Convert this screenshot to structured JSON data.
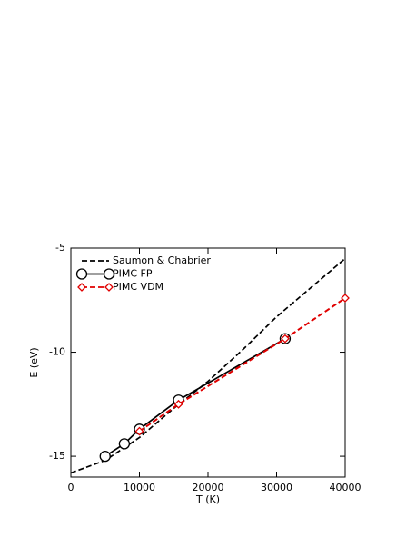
{
  "chart_data": {
    "type": "line",
    "xlabel": "T (K)",
    "ylabel": "E (eV)",
    "xlim": [
      0,
      40000
    ],
    "xticks": [
      0,
      10000,
      20000,
      30000,
      40000
    ],
    "ylim": [
      -16,
      -5
    ],
    "yticks": [
      -15,
      -10,
      -5
    ],
    "legend": "upper left",
    "series": [
      {
        "name": "Saumon & Chabrier",
        "color": "#000000",
        "dash": true,
        "marker": "none",
        "x": [
          0,
          5000,
          10000,
          15000,
          20000,
          25000,
          30000,
          35000,
          40000
        ],
        "values": [
          -15.8,
          -15.2,
          -14.1,
          -12.7,
          -11.4,
          -9.9,
          -8.3,
          -6.9,
          -5.5
        ]
      },
      {
        "name": "PIMC FP",
        "color": "#000000",
        "dash": false,
        "marker": "circle",
        "x": [
          5000,
          7800,
          10000,
          15700,
          31250
        ],
        "values": [
          -15.0,
          -14.4,
          -13.7,
          -12.3,
          -9.35
        ]
      },
      {
        "name": "PIMC VDM",
        "color": "#e00000",
        "dash": true,
        "marker": "diamond",
        "x": [
          10000,
          15700,
          31250,
          40000
        ],
        "values": [
          -13.8,
          -12.5,
          -9.35,
          -7.4
        ]
      }
    ]
  }
}
